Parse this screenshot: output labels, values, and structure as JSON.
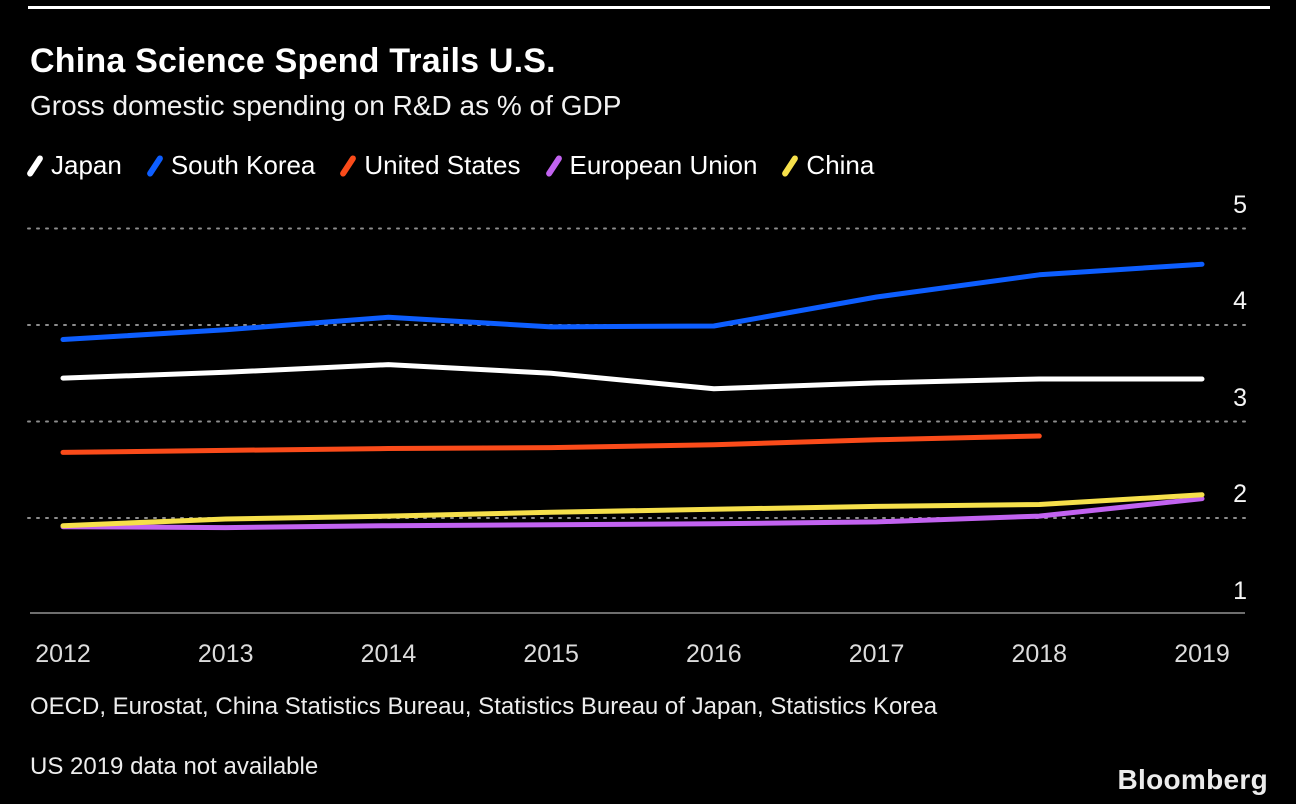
{
  "header": {
    "title": "China Science Spend Trails U.S.",
    "subtitle": "Gross domestic spending on R&D as % of GDP"
  },
  "footer": {
    "source": "OECD, Eurostat, China Statistics Bureau, Statistics Bureau of Japan, Statistics Korea",
    "note": "US 2019 data not available",
    "brand": "Bloomberg"
  },
  "colors": {
    "background": "#000000",
    "gridline": "#8d8d8d",
    "axis_line": "#6e6e6e",
    "japan": "#ffffff",
    "south_korea": "#0d5eff",
    "united_states": "#fa4b1a",
    "european_union": "#c263f0",
    "china": "#f6e04b"
  },
  "chart_data": {
    "type": "line",
    "title": "China Science Spend Trails U.S.",
    "subtitle": "Gross domestic spending on R&D as % of GDP",
    "x": [
      2012,
      2013,
      2014,
      2015,
      2016,
      2017,
      2018,
      2019
    ],
    "xlabel": "",
    "ylabel": "Gross domestic spending on R&D as % of GDP",
    "ylim": [
      1,
      5
    ],
    "yticks": [
      1,
      2,
      3,
      4,
      5
    ],
    "grid": "dotted horizontal gridlines at 2,3,4,5; y labels on right; solid x axis line",
    "legend_position": "top",
    "series": [
      {
        "name": "Japan",
        "color": "#ffffff",
        "values": [
          3.45,
          3.51,
          3.59,
          3.5,
          3.34,
          3.4,
          3.44,
          3.44
        ]
      },
      {
        "name": "South Korea",
        "color": "#0d5eff",
        "values": [
          3.85,
          3.95,
          4.08,
          3.98,
          3.99,
          4.29,
          4.52,
          4.63
        ]
      },
      {
        "name": "United States",
        "color": "#fa4b1a",
        "values": [
          2.68,
          2.7,
          2.72,
          2.73,
          2.76,
          2.81,
          2.85,
          null
        ]
      },
      {
        "name": "European Union",
        "color": "#c263f0",
        "values": [
          1.91,
          1.9,
          1.92,
          1.93,
          1.94,
          1.96,
          2.02,
          2.2
        ]
      },
      {
        "name": "China",
        "color": "#f6e04b",
        "values": [
          1.92,
          1.99,
          2.02,
          2.06,
          2.09,
          2.12,
          2.14,
          2.24
        ]
      }
    ],
    "source": "OECD, Eurostat, China Statistics Bureau, Statistics Bureau of Japan, Statistics Korea",
    "notes": [
      "US 2019 data not available"
    ]
  }
}
